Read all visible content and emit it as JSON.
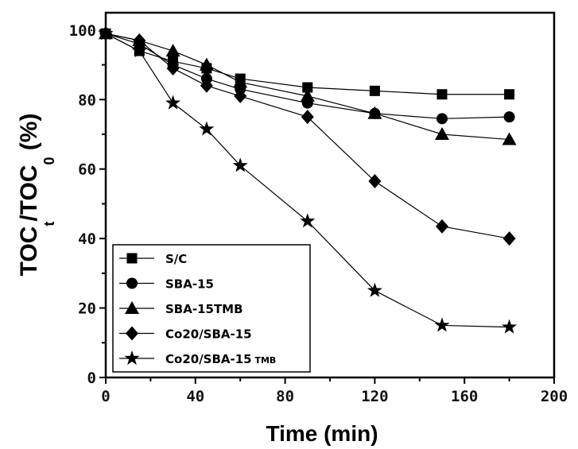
{
  "chart_data": {
    "type": "line",
    "title": "",
    "xlabel": "Time (min)",
    "ylabel": {
      "main": "TOC",
      "sub": "t",
      "sep": "/TOC",
      "sub2": "0",
      "unit": " (%)"
    },
    "xlim": [
      0,
      200
    ],
    "ylim": [
      0,
      105
    ],
    "xticks": [
      "0",
      "40",
      "80",
      "120",
      "160",
      "200"
    ],
    "yticks": [
      "0",
      "20",
      "40",
      "60",
      "80",
      "100"
    ],
    "legend_position": "bottom-left",
    "series": [
      {
        "name": "S/C",
        "marker": "square",
        "x": [
          0,
          15,
          30,
          45,
          60,
          90,
          120,
          150,
          180
        ],
        "y": [
          99,
          94,
          91,
          89,
          86,
          83.5,
          82.5,
          81.5,
          81.5
        ]
      },
      {
        "name": "SBA-15",
        "marker": "circle",
        "x": [
          0,
          15,
          30,
          45,
          60,
          90,
          120,
          150,
          180
        ],
        "y": [
          99,
          96,
          90,
          86,
          83,
          79,
          76,
          74.5,
          75
        ]
      },
      {
        "name": "SBA-15TMB",
        "marker": "triangle",
        "x": [
          0,
          15,
          30,
          45,
          60,
          90,
          120,
          150,
          180
        ],
        "y": [
          99,
          97,
          94,
          90,
          85,
          81,
          76,
          70,
          68.5
        ]
      },
      {
        "name": "Co20/SBA-15",
        "marker": "diamond",
        "x": [
          0,
          15,
          30,
          45,
          60,
          90,
          120,
          150,
          180
        ],
        "y": [
          99,
          97,
          89,
          84,
          81,
          75,
          56.5,
          43.5,
          40
        ]
      },
      {
        "name": "Co20/SBA-15 TMB",
        "marker": "star",
        "x": [
          0,
          15,
          30,
          45,
          60,
          90,
          120,
          150,
          180
        ],
        "y": [
          99,
          94,
          79,
          71.5,
          61,
          45,
          25,
          15,
          14.5
        ]
      }
    ],
    "legend_labels": [
      {
        "main": "S/C",
        "small": ""
      },
      {
        "main": "SBA-15",
        "small": ""
      },
      {
        "main": "SBA-15TMB",
        "small": ""
      },
      {
        "main": "Co20/SBA-15",
        "small": ""
      },
      {
        "main": "Co20/SBA-15",
        "small": " TMB"
      }
    ]
  }
}
